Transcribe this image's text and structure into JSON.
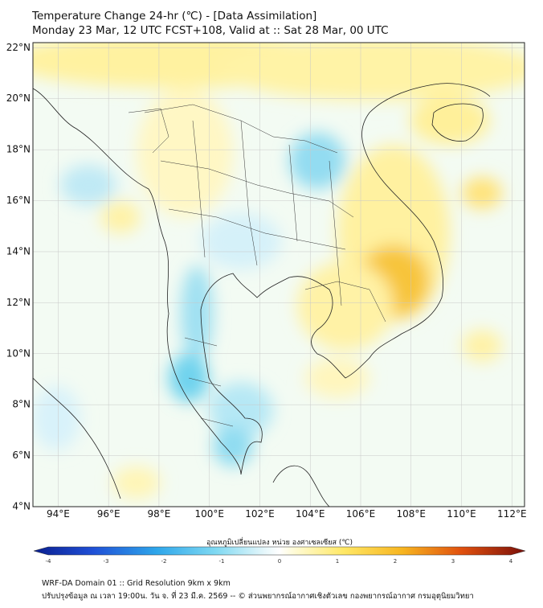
{
  "title": {
    "line1": "Temperature Change 24-hr (℃) - [Data Assimilation]",
    "line2": "Monday 23 Mar, 12 UTC FCST+108, Valid at :: Sat 28 Mar, 00 UTC"
  },
  "map": {
    "lat_labels": [
      "22°N",
      "20°N",
      "18°N",
      "16°N",
      "14°N",
      "12°N",
      "10°N",
      "8°N",
      "6°N",
      "4°N"
    ],
    "lon_labels": [
      "94°E",
      "96°E",
      "98°E",
      "100°E",
      "102°E",
      "104°E",
      "106°E",
      "108°E",
      "110°E",
      "112°E"
    ],
    "lat_range": [
      4,
      22.2
    ],
    "lon_range": [
      93,
      112.5
    ]
  },
  "colorbar": {
    "title": "อุณหภูมิเปลี่ยนแปลง หน่วย องศาเซลเซียส (℃)",
    "ticks": [
      "-4",
      "-3",
      "-2",
      "-1",
      "0",
      "1",
      "2",
      "3",
      "4"
    ],
    "range": [
      -4,
      4
    ]
  },
  "colors": {
    "warm_light": "#fff7b8",
    "warm": "#ffe066",
    "warm_strong": "#f5b92a",
    "cool_light": "#dff4fb",
    "cool": "#7fd6ef",
    "cool_strong": "#33bfe6",
    "neutral": "#f6fbf4"
  },
  "footer": {
    "line1": "WRF-DA Domain 01 :: Grid Resolution 9km x 9km",
    "line2": "ปรับปรุงข้อมูล ณ เวลา 19:00น. วัน จ. ที่ 23 มี.ค. 2569 -- © ส่วนพยากรณ์อากาศเชิงตัวเลข กองพยากรณ์อากาศ กรมอุตุนิยมวิทยา"
  }
}
